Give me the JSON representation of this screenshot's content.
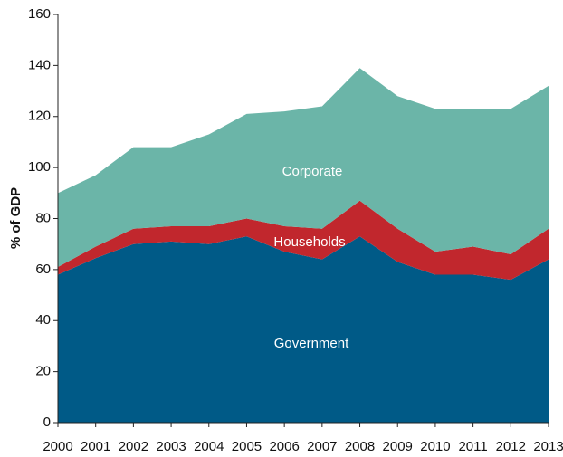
{
  "chart_data": {
    "type": "stacked_area",
    "y_label": "% of GDP",
    "categories": [
      "2000",
      "2001",
      "2002",
      "2003",
      "2004",
      "2005",
      "2006",
      "2007",
      "2008",
      "2009",
      "2010",
      "2011",
      "2012",
      "2013"
    ],
    "series": [
      {
        "name": "Government",
        "color": "#005a87",
        "values": [
          58,
          64.5,
          70,
          71,
          70,
          73,
          67,
          64,
          73,
          63,
          58,
          58,
          56,
          64
        ]
      },
      {
        "name": "Households",
        "color": "#c1272d",
        "values": [
          3,
          4.5,
          6,
          6,
          7,
          7,
          10,
          12,
          14,
          13,
          9,
          11,
          10,
          12
        ]
      },
      {
        "name": "Corporate",
        "color": "#6bb5a8",
        "values": [
          29,
          28,
          32,
          31,
          36,
          41,
          45,
          48,
          52,
          52,
          56,
          54,
          57,
          56
        ]
      }
    ],
    "ylim": [
      0,
      160
    ],
    "yticks": [
      0,
      20,
      40,
      60,
      80,
      100,
      120,
      140,
      160
    ]
  }
}
